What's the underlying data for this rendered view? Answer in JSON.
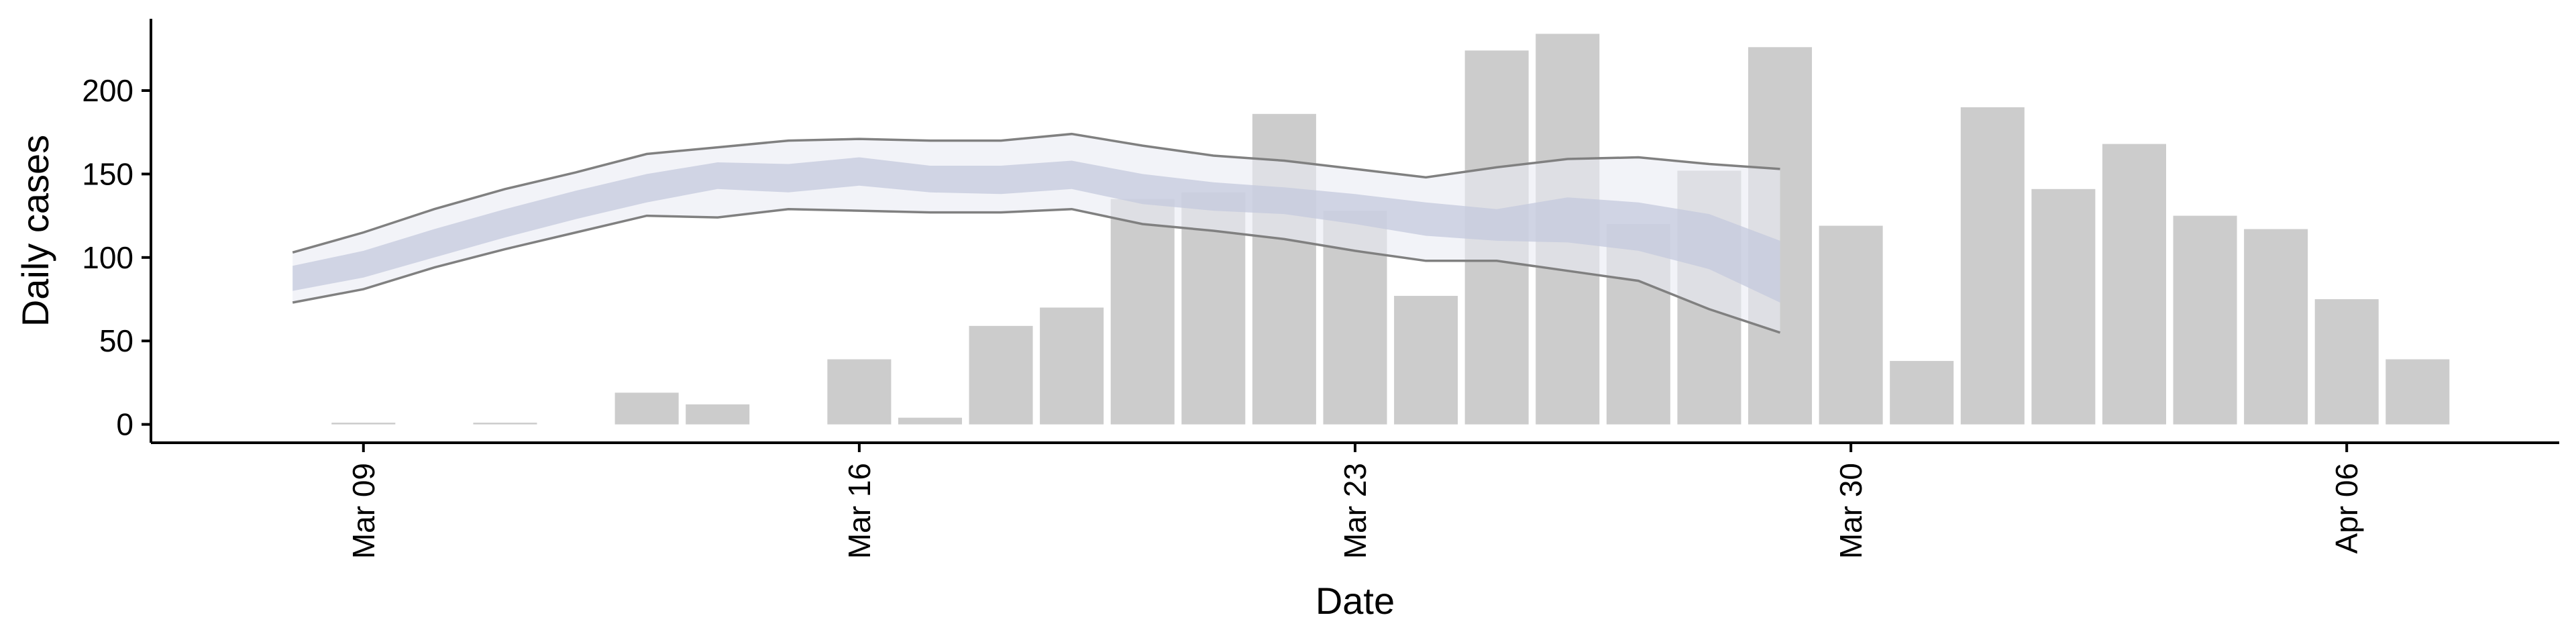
{
  "chart_data": {
    "type": "bar",
    "xlabel": "Date",
    "ylabel": "Daily cases",
    "x_tick_labels": [
      {
        "date": "2020-03-09",
        "label": "Mar 09"
      },
      {
        "date": "2020-03-16",
        "label": "Mar 16"
      },
      {
        "date": "2020-03-23",
        "label": "Mar 23"
      },
      {
        "date": "2020-03-30",
        "label": "Mar 30"
      },
      {
        "date": "2020-04-06",
        "label": "Apr 06"
      }
    ],
    "y_ticks": [
      0,
      50,
      100,
      150,
      200
    ],
    "xlim": [
      "2020-03-06",
      "2020-04-09"
    ],
    "ylim": [
      -11,
      243
    ],
    "grid": false,
    "legend": "none",
    "bars": [
      {
        "date": "2020-03-09",
        "value": 1
      },
      {
        "date": "2020-03-11",
        "value": 1
      },
      {
        "date": "2020-03-13",
        "value": 19
      },
      {
        "date": "2020-03-14",
        "value": 12
      },
      {
        "date": "2020-03-16",
        "value": 39
      },
      {
        "date": "2020-03-17",
        "value": 4
      },
      {
        "date": "2020-03-18",
        "value": 59
      },
      {
        "date": "2020-03-19",
        "value": 70
      },
      {
        "date": "2020-03-20",
        "value": 135
      },
      {
        "date": "2020-03-21",
        "value": 139
      },
      {
        "date": "2020-03-22",
        "value": 186
      },
      {
        "date": "2020-03-23",
        "value": 128
      },
      {
        "date": "2020-03-24",
        "value": 77
      },
      {
        "date": "2020-03-25",
        "value": 224
      },
      {
        "date": "2020-03-26",
        "value": 234
      },
      {
        "date": "2020-03-27",
        "value": 120
      },
      {
        "date": "2020-03-28",
        "value": 152
      },
      {
        "date": "2020-03-29",
        "value": 226
      },
      {
        "date": "2020-03-30",
        "value": 119
      },
      {
        "date": "2020-03-31",
        "value": 38
      },
      {
        "date": "2020-04-01",
        "value": 190
      },
      {
        "date": "2020-04-02",
        "value": 141
      },
      {
        "date": "2020-04-03",
        "value": 168
      },
      {
        "date": "2020-04-04",
        "value": 125
      },
      {
        "date": "2020-04-05",
        "value": 117
      },
      {
        "date": "2020-04-06",
        "value": 75
      },
      {
        "date": "2020-04-07",
        "value": 39
      }
    ],
    "fit_band": [
      {
        "date": "2020-03-08",
        "lower_outer": 73,
        "lower_inner": 80,
        "upper_inner": 95,
        "upper_outer": 103
      },
      {
        "date": "2020-03-09",
        "lower_outer": 81,
        "lower_inner": 88,
        "upper_inner": 104,
        "upper_outer": 115
      },
      {
        "date": "2020-03-10",
        "lower_outer": 94,
        "lower_inner": 100,
        "upper_inner": 117,
        "upper_outer": 129
      },
      {
        "date": "2020-03-11",
        "lower_outer": 105,
        "lower_inner": 112,
        "upper_inner": 129,
        "upper_outer": 141
      },
      {
        "date": "2020-03-12",
        "lower_outer": 115,
        "lower_inner": 123,
        "upper_inner": 140,
        "upper_outer": 151
      },
      {
        "date": "2020-03-13",
        "lower_outer": 125,
        "lower_inner": 133,
        "upper_inner": 150,
        "upper_outer": 162
      },
      {
        "date": "2020-03-14",
        "lower_outer": 124,
        "lower_inner": 141,
        "upper_inner": 157,
        "upper_outer": 166
      },
      {
        "date": "2020-03-15",
        "lower_outer": 129,
        "lower_inner": 139,
        "upper_inner": 156,
        "upper_outer": 170
      },
      {
        "date": "2020-03-16",
        "lower_outer": 128,
        "lower_inner": 143,
        "upper_inner": 160,
        "upper_outer": 171
      },
      {
        "date": "2020-03-17",
        "lower_outer": 127,
        "lower_inner": 139,
        "upper_inner": 155,
        "upper_outer": 170
      },
      {
        "date": "2020-03-18",
        "lower_outer": 127,
        "lower_inner": 138,
        "upper_inner": 155,
        "upper_outer": 170
      },
      {
        "date": "2020-03-19",
        "lower_outer": 129,
        "lower_inner": 141,
        "upper_inner": 158,
        "upper_outer": 174
      },
      {
        "date": "2020-03-20",
        "lower_outer": 120,
        "lower_inner": 132,
        "upper_inner": 150,
        "upper_outer": 167
      },
      {
        "date": "2020-03-21",
        "lower_outer": 116,
        "lower_inner": 128,
        "upper_inner": 145,
        "upper_outer": 161
      },
      {
        "date": "2020-03-22",
        "lower_outer": 111,
        "lower_inner": 126,
        "upper_inner": 142,
        "upper_outer": 158
      },
      {
        "date": "2020-03-23",
        "lower_outer": 104,
        "lower_inner": 120,
        "upper_inner": 138,
        "upper_outer": 153
      },
      {
        "date": "2020-03-24",
        "lower_outer": 98,
        "lower_inner": 113,
        "upper_inner": 133,
        "upper_outer": 148
      },
      {
        "date": "2020-03-25",
        "lower_outer": 98,
        "lower_inner": 110,
        "upper_inner": 129,
        "upper_outer": 154
      },
      {
        "date": "2020-03-26",
        "lower_outer": 92,
        "lower_inner": 109,
        "upper_inner": 136,
        "upper_outer": 159
      },
      {
        "date": "2020-03-27",
        "lower_outer": 86,
        "lower_inner": 104,
        "upper_inner": 133,
        "upper_outer": 160
      },
      {
        "date": "2020-03-28",
        "lower_outer": 69,
        "lower_inner": 93,
        "upper_inner": 126,
        "upper_outer": 156
      },
      {
        "date": "2020-03-29",
        "lower_outer": 55,
        "lower_inner": 73,
        "upper_inner": 110,
        "upper_outer": 153
      }
    ],
    "colors": {
      "bars": "#cccccc",
      "band_outer": "#e9ebf3",
      "band_inner": "#c4c9de",
      "band_edge": "#808080",
      "axis": "#000000"
    }
  }
}
